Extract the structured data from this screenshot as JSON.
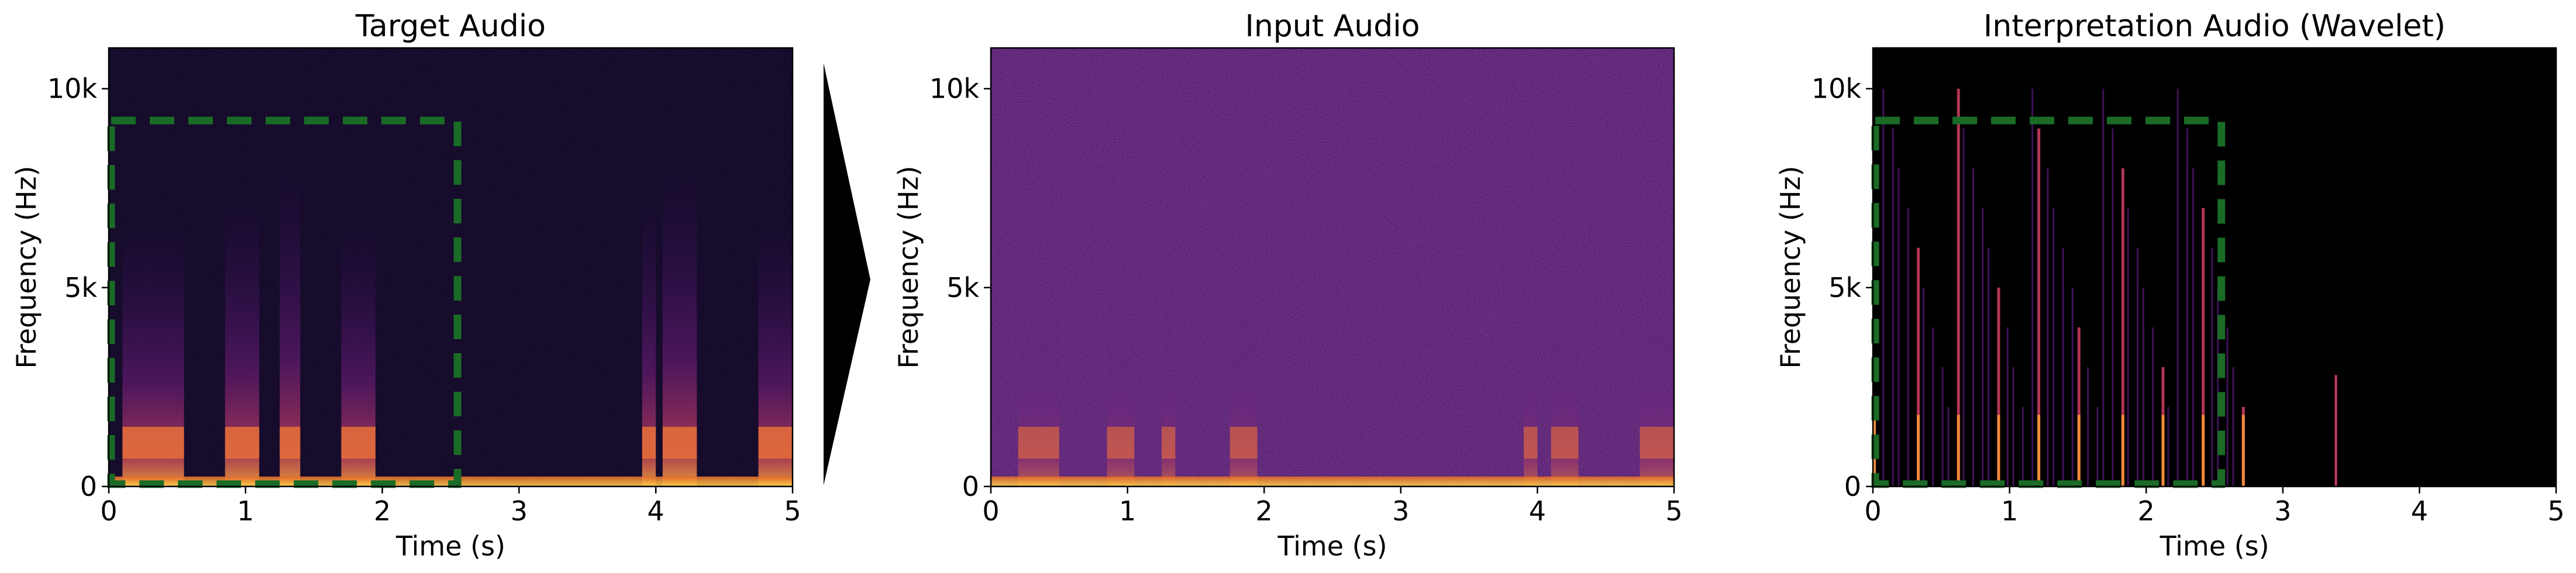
{
  "chart_data": [
    {
      "type": "heatmap",
      "title": "Target Audio",
      "xlabel": "Time (s)",
      "ylabel": "Frequency (Hz)",
      "xlim": [
        0,
        5
      ],
      "ylim": [
        0,
        11025
      ],
      "xticks": [
        0,
        1,
        2,
        3,
        4,
        5
      ],
      "xtick_labels": [
        "0",
        "1",
        "2",
        "3",
        "4",
        "5"
      ],
      "yticks": [
        0,
        5000,
        10000
      ],
      "ytick_labels": [
        "0",
        "5k",
        "10k"
      ],
      "colormap": "inferno",
      "speech_segments_s": [
        [
          0.1,
          0.55
        ],
        [
          0.85,
          1.1
        ],
        [
          1.25,
          1.4
        ],
        [
          1.7,
          1.95
        ],
        [
          3.9,
          4.0
        ],
        [
          4.05,
          4.3
        ],
        [
          4.75,
          5.0
        ]
      ],
      "highlight_box": {
        "x": [
          0.0,
          2.55
        ],
        "y": [
          0,
          9200
        ],
        "style": "dashed",
        "color": "#1a6b26"
      }
    },
    {
      "type": "heatmap",
      "title": "Input Audio",
      "xlabel": "Time (s)",
      "ylabel": "Frequency (Hz)",
      "xlim": [
        0,
        5
      ],
      "ylim": [
        0,
        11025
      ],
      "xticks": [
        0,
        1,
        2,
        3,
        4,
        5
      ],
      "xtick_labels": [
        "0",
        "1",
        "2",
        "3",
        "4",
        "5"
      ],
      "yticks": [
        0,
        5000,
        10000
      ],
      "ytick_labels": [
        "0",
        "5k",
        "10k"
      ],
      "colormap": "inferno",
      "noise_level": "high",
      "speech_segments_s": [
        [
          0.2,
          0.5
        ],
        [
          0.85,
          1.05
        ],
        [
          1.25,
          1.35
        ],
        [
          1.75,
          1.95
        ],
        [
          3.9,
          4.0
        ],
        [
          4.1,
          4.3
        ],
        [
          4.75,
          5.0
        ]
      ]
    },
    {
      "type": "heatmap",
      "title": "Interpretation Audio (Wavelet)",
      "xlabel": "Time (s)",
      "ylabel": "Frequency (Hz)",
      "xlim": [
        0,
        5
      ],
      "ylim": [
        0,
        11025
      ],
      "xticks": [
        0,
        1,
        2,
        3,
        4,
        5
      ],
      "xtick_labels": [
        "0",
        "1",
        "2",
        "3",
        "4",
        "5"
      ],
      "yticks": [
        0,
        5000,
        10000
      ],
      "ytick_labels": [
        "0",
        "5k",
        "10k"
      ],
      "colormap": "inferno",
      "activity_range_s": [
        0.0,
        2.75
      ],
      "highlight_box": {
        "x": [
          0.0,
          2.55
        ],
        "y": [
          0,
          9200
        ],
        "style": "dashed",
        "color": "#1a6b26"
      }
    }
  ],
  "arrow": {
    "color": "#000000",
    "direction": "right"
  }
}
